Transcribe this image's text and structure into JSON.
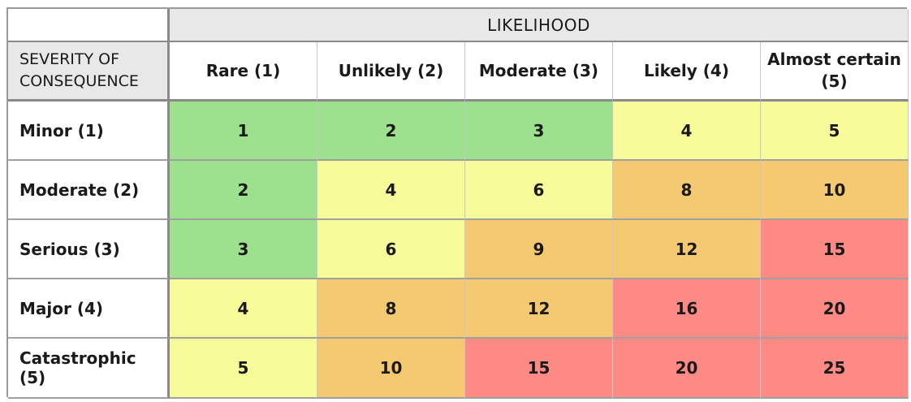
{
  "likelihood_label": "LIKELIHOOD",
  "severity_label": "SEVERITY OF\nCONSEQUENCE",
  "likelihood_levels": [
    "Rare (1)",
    "Unlikely (2)",
    "Moderate (3)",
    "Likely (4)",
    "Almost certain (5)"
  ],
  "severity_levels": [
    "Minor (1)",
    "Moderate (2)",
    "Serious (3)",
    "Major (4)",
    "Catastrophic (5)"
  ],
  "scores": [
    [
      1,
      2,
      3,
      4,
      5
    ],
    [
      2,
      4,
      6,
      8,
      10
    ],
    [
      3,
      6,
      9,
      12,
      15
    ],
    [
      4,
      8,
      12,
      16,
      20
    ],
    [
      5,
      10,
      15,
      20,
      25
    ]
  ],
  "colors": {
    "low": "#9de18f",
    "medium": "#f8fb9a",
    "high": "#f5c872",
    "extreme": "#fe8a85"
  },
  "color_map": [
    [
      "low",
      "low",
      "low",
      "medium",
      "medium"
    ],
    [
      "low",
      "medium",
      "medium",
      "high",
      "high"
    ],
    [
      "low",
      "medium",
      "high",
      "high",
      "extreme"
    ],
    [
      "medium",
      "high",
      "high",
      "extreme",
      "extreme"
    ],
    [
      "medium",
      "high",
      "extreme",
      "extreme",
      "extreme"
    ]
  ]
}
